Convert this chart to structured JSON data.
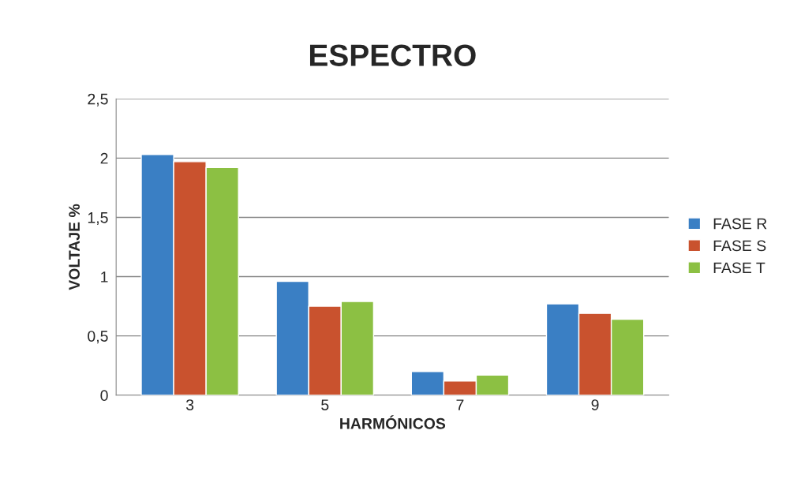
{
  "chart_data": {
    "type": "bar",
    "title": "ESPECTRO",
    "xlabel": "HARMÓNICOS",
    "ylabel": "VOLTAJE %",
    "categories": [
      "3",
      "5",
      "7",
      "9"
    ],
    "series": [
      {
        "name": "FASE R",
        "color": "#3a7fc4",
        "values": [
          2.03,
          0.96,
          0.2,
          0.77
        ]
      },
      {
        "name": "FASE S",
        "color": "#c9522e",
        "values": [
          1.97,
          0.75,
          0.12,
          0.69
        ]
      },
      {
        "name": "FASE T",
        "color": "#8cc043",
        "values": [
          1.92,
          0.79,
          0.17,
          0.64
        ]
      }
    ],
    "ylim": [
      0,
      2.5
    ],
    "yticks": [
      {
        "value": 0,
        "label": "0"
      },
      {
        "value": 0.5,
        "label": "0,5"
      },
      {
        "value": 1,
        "label": "1"
      },
      {
        "value": 1.5,
        "label": "1,5"
      },
      {
        "value": 2,
        "label": "2"
      },
      {
        "value": 2.5,
        "label": "2,5"
      }
    ],
    "grid": "y",
    "legend": "right"
  }
}
